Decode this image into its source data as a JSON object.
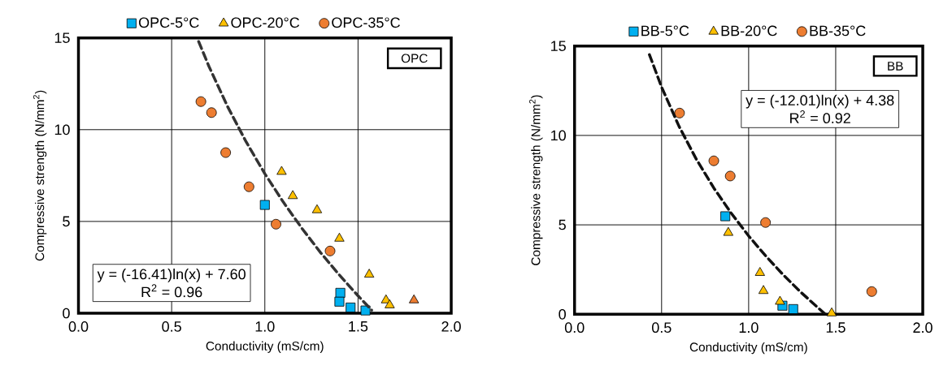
{
  "chart_data": [
    {
      "type": "scatter",
      "xlabel": "Conductivity (mS/cm)",
      "ylabel": "Compressive strength (N/mm$^{2}$)",
      "xlim": [
        0,
        2
      ],
      "ylim": [
        0,
        15
      ],
      "xticks": [
        {
          "value": 0,
          "label": "0.0"
        },
        {
          "value": 0.5,
          "label": "0.5"
        },
        {
          "value": 1,
          "label": "1.0"
        },
        {
          "value": 1.5,
          "label": "1.5"
        },
        {
          "value": 2,
          "label": "2.0"
        }
      ],
      "yticks": [
        0,
        5,
        10,
        15
      ],
      "grid": true,
      "legend": "top",
      "annotations": [
        "OPC",
        "y = (-16.41)ln(x) + 7.60",
        "R$^{2}$ = 0.96"
      ],
      "series": [
        {
          "name": "OPC-5°C",
          "color": "#00b0f0",
          "marker": "square",
          "x": [
            1.0,
            1.405,
            1.4,
            1.41,
            1.46,
            1.54
          ],
          "values": [
            5.9,
            1.11,
            0.63,
            null,
            0.31,
            0.15
          ]
        },
        {
          "name": "OPC-20°C",
          "color": "#ffc000",
          "marker": "triangle",
          "x": [
            1.09,
            1.15,
            1.28,
            1.4,
            1.56,
            1.65,
            1.67,
            1.8
          ],
          "values": [
            7.71,
            6.39,
            5.62,
            4.07,
            2.11,
            0.71,
            0.44,
            0.71
          ],
          "colors": [
            "#ffc000",
            "#ffc000",
            "#ffc000",
            "#ffc000",
            "#ffc000",
            "#ffc000",
            "#ffc000",
            "#ed7d31"
          ]
        },
        {
          "name": "OPC-35°C",
          "color": "#ed7d31",
          "marker": "circle",
          "x": [
            0.657,
            0.714,
            0.79,
            0.915,
            1.06,
            1.35
          ],
          "values": [
            11.53,
            10.93,
            8.75,
            6.89,
            4.85,
            3.39
          ]
        },
        {
          "type": "line",
          "color": "#333333",
          "line_style": "dashed",
          "marker": "none",
          "x": [
            0.645,
            0.7,
            0.8,
            0.9,
            1.0,
            1.1,
            1.2,
            1.3,
            1.4,
            1.5,
            1.573
          ],
          "values": [
            14.8,
            13.45,
            11.26,
            9.33,
            7.6,
            6.04,
            4.61,
            3.29,
            2.08,
            0.95,
            0.17
          ]
        }
      ]
    },
    {
      "type": "scatter",
      "xlabel": "Conductivity (mS/cm)",
      "ylabel": "Compressive strength (N/mm$^{2}$)",
      "xlim": [
        0,
        2
      ],
      "ylim": [
        0,
        15
      ],
      "xticks": [
        {
          "value": 0,
          "label": "0.0"
        },
        {
          "value": 0.5,
          "label": "0.5"
        },
        {
          "value": 1,
          "label": "1.0"
        },
        {
          "value": 1.5,
          "label": "1.5"
        },
        {
          "value": 2,
          "label": "2.0"
        }
      ],
      "yticks": [
        0,
        5,
        10,
        15
      ],
      "grid": true,
      "legend": "top",
      "annotations": [
        "BB",
        "y = (-12.01)ln(x) + 4.38",
        "R$^{2}$ = 0.92"
      ],
      "series": [
        {
          "name": "BB-5°C",
          "color": "#00b0f0",
          "marker": "square",
          "x": [
            0.866,
            1.194,
            1.256
          ],
          "values": [
            5.48,
            0.48,
            0.29
          ]
        },
        {
          "name": "BB-20°C",
          "color": "#ffc000",
          "marker": "triangle",
          "x": [
            0.883,
            1.065,
            1.085,
            1.18,
            1.477
          ],
          "values": [
            4.56,
            2.32,
            1.31,
            0.71,
            0.06
          ]
        },
        {
          "name": "BB-35°C",
          "color": "#ed7d31",
          "marker": "circle",
          "x": [
            0.603,
            0.8,
            0.894,
            1.097,
            1.707
          ],
          "values": [
            11.25,
            8.58,
            7.73,
            5.13,
            1.27
          ]
        },
        {
          "type": "line",
          "color": "#111111",
          "line_style": "dashed",
          "marker": "none",
          "x": [
            0.43,
            0.5,
            0.6,
            0.7,
            0.8,
            0.9,
            1.0,
            1.1,
            1.2,
            1.3,
            1.44
          ],
          "values": [
            14.52,
            12.7,
            10.51,
            8.66,
            7.06,
            5.65,
            4.38,
            3.24,
            2.19,
            1.23,
            0.0
          ]
        }
      ]
    }
  ]
}
